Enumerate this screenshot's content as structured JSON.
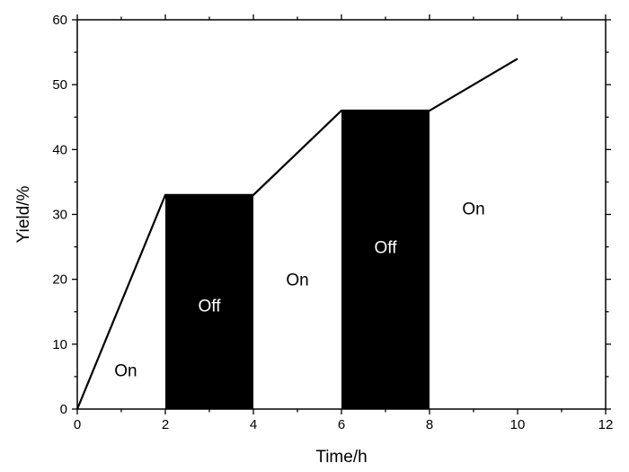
{
  "chart_data": {
    "type": "line",
    "title": "",
    "xlabel": "Time/h",
    "ylabel": "Yield/%",
    "xlim": [
      0,
      12
    ],
    "ylim": [
      0,
      60
    ],
    "x_ticks": [
      0,
      2,
      4,
      6,
      8,
      10,
      12
    ],
    "y_ticks": [
      0,
      10,
      20,
      30,
      40,
      50,
      60
    ],
    "grid": false,
    "legend": "none",
    "series": [
      {
        "x": [
          0,
          2,
          4,
          6,
          8,
          10
        ],
        "y": [
          0,
          33,
          33,
          46,
          46,
          54
        ],
        "color": "#000000"
      }
    ],
    "shaded_regions": [
      {
        "x0": 2,
        "x1": 4,
        "y0": 0,
        "y1": 33,
        "color": "#000000"
      },
      {
        "x0": 6,
        "x1": 8,
        "y0": 0,
        "y1": 46,
        "color": "#000000"
      }
    ],
    "annotations": [
      {
        "text": "On",
        "x": 1.1,
        "y": 6,
        "on_dark": false
      },
      {
        "text": "Off",
        "x": 3.0,
        "y": 16,
        "on_dark": true
      },
      {
        "text": "On",
        "x": 5.0,
        "y": 20,
        "on_dark": false
      },
      {
        "text": "Off",
        "x": 7.0,
        "y": 25,
        "on_dark": true
      },
      {
        "text": "On",
        "x": 9.0,
        "y": 31,
        "on_dark": false
      }
    ]
  }
}
